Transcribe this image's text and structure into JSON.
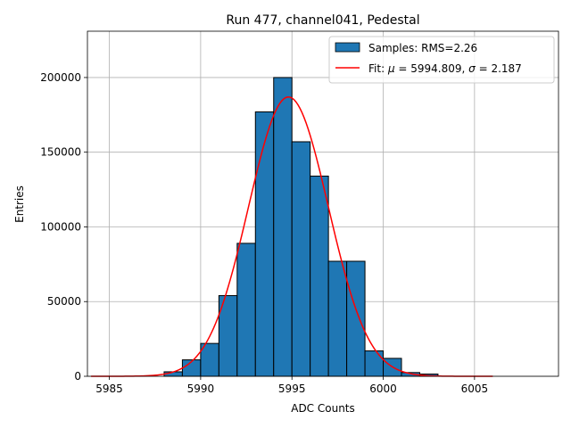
{
  "chart_data": {
    "type": "bar",
    "title": "Run 477, channel041, Pedestal",
    "xlabel": "ADC Counts",
    "ylabel": "Entries",
    "xlim": [
      5983.8,
      6009.6
    ],
    "ylim": [
      0,
      231000
    ],
    "grid": true,
    "x_ticks": [
      5985,
      5990,
      5995,
      6000,
      6005
    ],
    "y_ticks": [
      0,
      50000,
      100000,
      150000,
      200000
    ],
    "bins": [
      {
        "start": 5988,
        "end": 5989,
        "value": 3000
      },
      {
        "start": 5989,
        "end": 5990,
        "value": 11000
      },
      {
        "start": 5990,
        "end": 5991,
        "value": 22000
      },
      {
        "start": 5991,
        "end": 5992,
        "value": 54000
      },
      {
        "start": 5992,
        "end": 5993,
        "value": 89000
      },
      {
        "start": 5993,
        "end": 5994,
        "value": 177000
      },
      {
        "start": 5994,
        "end": 5995,
        "value": 200000
      },
      {
        "start": 5995,
        "end": 5996,
        "value": 157000
      },
      {
        "start": 5996,
        "end": 5997,
        "value": 134000
      },
      {
        "start": 5997,
        "end": 5998,
        "value": 77000
      },
      {
        "start": 5998,
        "end": 5999,
        "value": 77000
      },
      {
        "start": 5999,
        "end": 6000,
        "value": 17000
      },
      {
        "start": 6000,
        "end": 6001,
        "value": 12000
      },
      {
        "start": 6001,
        "end": 6002,
        "value": 2500
      },
      {
        "start": 6002,
        "end": 6003,
        "value": 1500
      }
    ],
    "fit": {
      "mu": 5994.809,
      "sigma": 2.187,
      "amplitude": 187000,
      "x_range": [
        5984,
        6006
      ]
    },
    "legend": {
      "position": "top-right",
      "samples_label": "Samples: RMS=2.26",
      "fit_prefix": "Fit: ",
      "fit_mu_part": " = 5994.809, ",
      "fit_sigma_part": " = 2.187"
    },
    "colors": {
      "bar_fill": "#1f77b4",
      "bar_edge": "#000000",
      "fit_line": "#ff0000",
      "grid": "#b0b0b0"
    }
  }
}
